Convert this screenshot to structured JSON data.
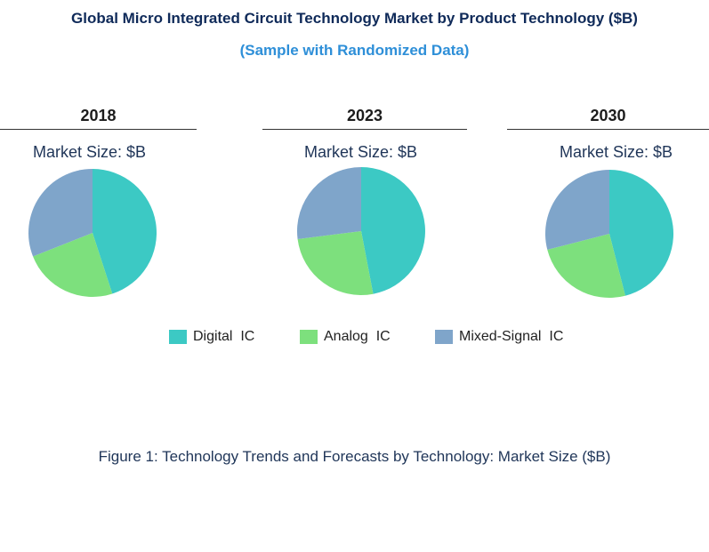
{
  "title": "Global Micro Integrated Circuit Technology Market by Product Technology ($B)",
  "subtitle": "(Sample with Randomized Data)",
  "caption": "Figure 1: Technology Trends and Forecasts by Technology: Market Size ($B)",
  "market_size_label": "Market Size: $B",
  "colors": {
    "digital": "#3cc9c4",
    "analog": "#7de07d",
    "mixed": "#7fa5ca",
    "title": "#0f2a59",
    "subtitle": "#2e8fd8"
  },
  "legend": [
    {
      "label": "Digital  IC",
      "color": "#3cc9c4"
    },
    {
      "label": "Analog  IC",
      "color": "#7de07d"
    },
    {
      "label": "Mixed-Signal  IC",
      "color": "#7fa5ca"
    }
  ],
  "chart_data": [
    {
      "type": "pie",
      "title": "2018",
      "subtitle": "Market Size: $B",
      "labels": [
        "Digital  IC",
        "Analog  IC",
        "Mixed-Signal  IC"
      ],
      "values": [
        45,
        24,
        31
      ]
    },
    {
      "type": "pie",
      "title": "2023",
      "subtitle": "Market Size: $B",
      "labels": [
        "Digital  IC",
        "Analog  IC",
        "Mixed-Signal  IC"
      ],
      "values": [
        47,
        26,
        27
      ]
    },
    {
      "type": "pie",
      "title": "2030",
      "subtitle": "Market Size: $B",
      "labels": [
        "Digital  IC",
        "Analog  IC",
        "Mixed-Signal  IC"
      ],
      "values": [
        46,
        25,
        29
      ]
    }
  ]
}
